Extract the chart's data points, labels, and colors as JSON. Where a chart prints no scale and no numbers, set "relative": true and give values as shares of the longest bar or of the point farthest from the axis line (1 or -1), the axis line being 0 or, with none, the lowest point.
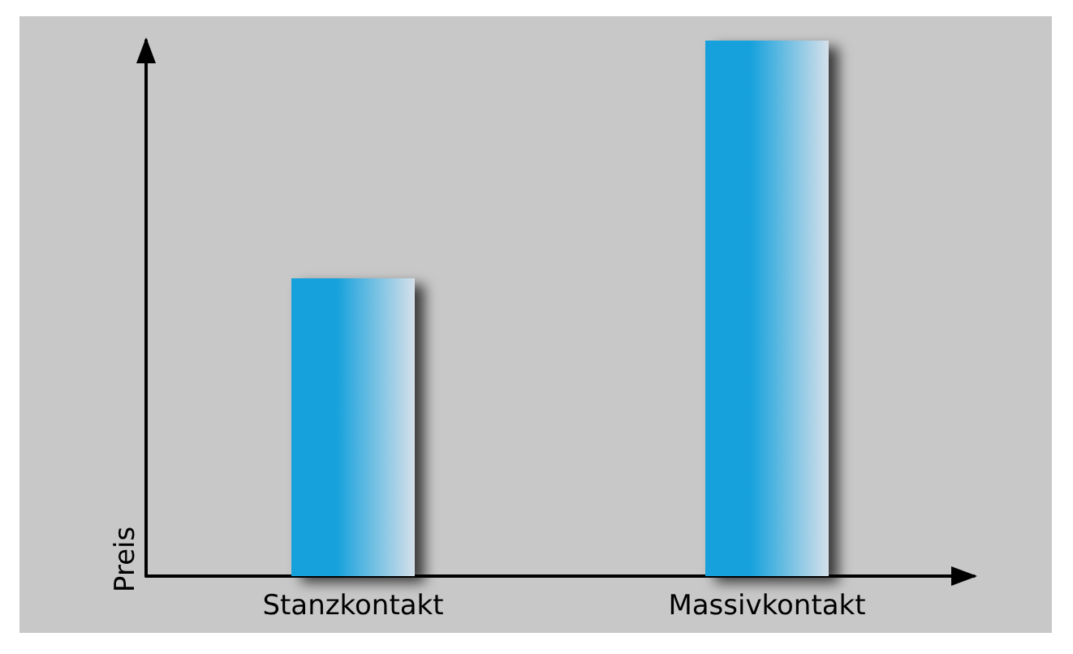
{
  "chart_data": {
    "type": "bar",
    "ylabel": "Preis",
    "categories": [
      "Stanzkontakt",
      "Massivkontakt"
    ],
    "relative": true,
    "values": [
      0.556,
      1
    ],
    "color": "#12a0dc",
    "grid": false
  }
}
